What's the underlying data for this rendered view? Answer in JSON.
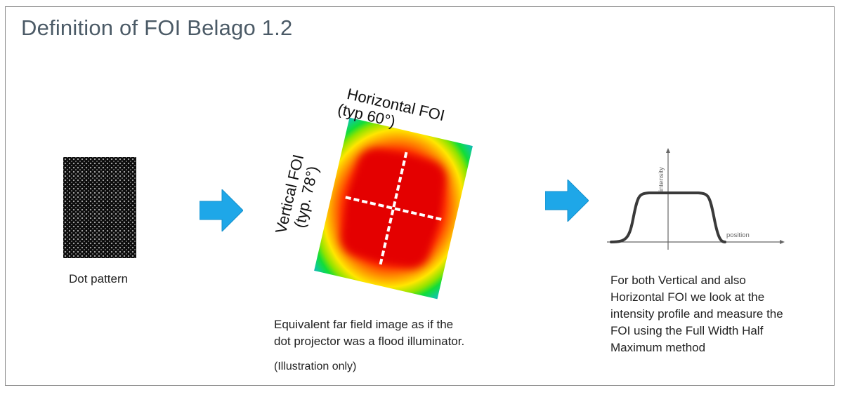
{
  "slide": {
    "title": "Definition of FOI Belago 1.2"
  },
  "left": {
    "caption": "Dot pattern"
  },
  "middle": {
    "horizontal_label_line1": "Horizontal FOI",
    "horizontal_label_line2": "(typ 60°)",
    "vertical_label_line1": "Vertical FOI",
    "vertical_label_line2": "(typ. 78°)",
    "caption_line1": "Equivalent far field image as if the",
    "caption_line2": "dot projector was a flood illuminator.",
    "note": "(Illustration only)"
  },
  "right": {
    "axis_y_label": "intensity",
    "axis_x_label": "position",
    "caption_lines": [
      "For both Vertical and also",
      "Horizontal FOI we look at the",
      "intensity profile and measure the",
      "FOI using the Full Width Half",
      "Maximum method"
    ]
  },
  "colors": {
    "arrow": "#1ea7e8",
    "title": "#4b5a66",
    "border": "#8a8a8a"
  }
}
